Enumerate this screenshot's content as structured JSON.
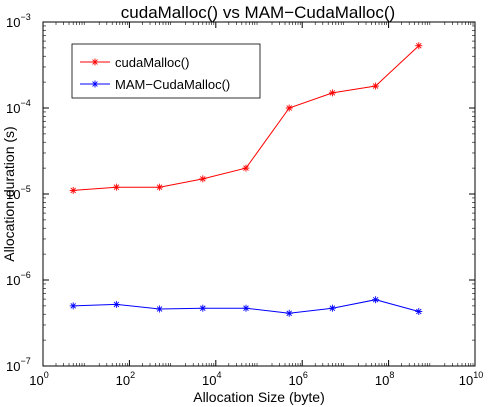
{
  "chart_data": {
    "type": "line",
    "title": "cudaMalloc() vs MAM−CudaMalloc()",
    "xlabel": "Allocation Size (byte)",
    "ylabel": "Allocation duration (s)",
    "xscale": "log",
    "yscale": "log",
    "xlim": [
      1,
      10000000000
    ],
    "ylim": [
      1e-07,
      0.001
    ],
    "xticks": [
      {
        "value": 1,
        "base": "10",
        "exp": "0"
      },
      {
        "value": 100,
        "base": "10",
        "exp": "2"
      },
      {
        "value": 10000,
        "base": "10",
        "exp": "4"
      },
      {
        "value": 1000000,
        "base": "10",
        "exp": "6"
      },
      {
        "value": 100000000,
        "base": "10",
        "exp": "8"
      },
      {
        "value": 10000000000,
        "base": "10",
        "exp": "10"
      }
    ],
    "yticks": [
      {
        "value": 1e-07,
        "base": "10",
        "exp": "−7"
      },
      {
        "value": 1e-06,
        "base": "10",
        "exp": "−6"
      },
      {
        "value": 1e-05,
        "base": "10",
        "exp": "−5"
      },
      {
        "value": 0.0001,
        "base": "10",
        "exp": "−4"
      },
      {
        "value": 0.001,
        "base": "10",
        "exp": "−3"
      }
    ],
    "x": [
      5,
      50,
      500,
      5000,
      50000,
      500000,
      5000000,
      50000000,
      500000000
    ],
    "series": [
      {
        "name": "cudaMalloc()",
        "color": "#ff0000",
        "marker": "*",
        "values": [
          1.1e-05,
          1.2e-05,
          1.2e-05,
          1.5e-05,
          2e-05,
          0.0001,
          0.00015,
          0.00018,
          0.00053
        ]
      },
      {
        "name": "MAM−CudaMalloc()",
        "color": "#0000ff",
        "marker": "*",
        "values": [
          5e-07,
          5.2e-07,
          4.6e-07,
          4.7e-07,
          4.7e-07,
          4.1e-07,
          4.7e-07,
          5.9e-07,
          4.3e-07
        ]
      }
    ],
    "legend": "top-left",
    "grid": false
  }
}
